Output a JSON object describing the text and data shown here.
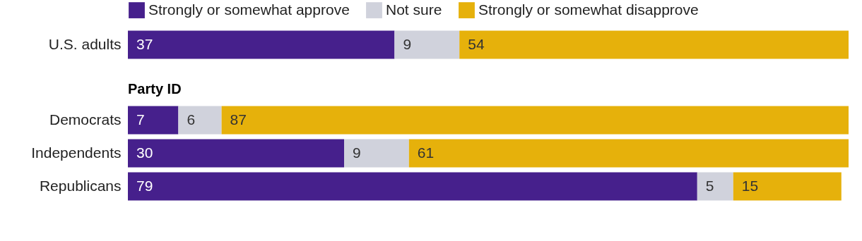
{
  "chart_data": [
    {
      "type": "bar",
      "orientation": "horizontal",
      "stacked": true,
      "data_labels": true,
      "legend": "top",
      "tick_labels": "y",
      "grid": false,
      "xlim": [
        0,
        100
      ],
      "categories": [
        "U.S. adults"
      ],
      "series": [
        {
          "name": "Strongly or somewhat approve",
          "color": "#46208c",
          "values": [
            37
          ]
        },
        {
          "name": "Not sure",
          "color": "#d0d2dc",
          "values": [
            9
          ]
        },
        {
          "name": "Strongly or somewhat disapprove",
          "color": "#e6b10b",
          "values": [
            54
          ]
        }
      ]
    },
    {
      "type": "bar",
      "orientation": "horizontal",
      "stacked": true,
      "data_labels": true,
      "tick_labels": "y",
      "grid": false,
      "xlim": [
        0,
        100
      ],
      "title": "Party ID",
      "categories": [
        "Democrats",
        "Independents",
        "Republicans"
      ],
      "series": [
        {
          "name": "Strongly or somewhat approve",
          "color": "#46208c",
          "values": [
            7,
            30,
            79
          ]
        },
        {
          "name": "Not sure",
          "color": "#d0d2dc",
          "values": [
            6,
            9,
            5
          ]
        },
        {
          "name": "Strongly or somewhat disapprove",
          "color": "#e6b10b",
          "values": [
            87,
            61,
            15
          ]
        }
      ]
    }
  ]
}
